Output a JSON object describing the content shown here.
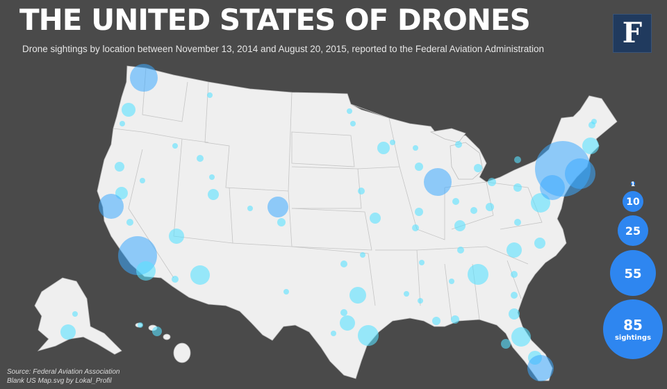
{
  "title": "THE UNITED STATES OF DRONES",
  "subtitle": "Drone sightings by location between November 13, 2014 and August 20, 2015, reported to the Federal Aviation Administration",
  "logo_letter": "F",
  "source_line1": "Source: Federal Aviation Association",
  "source_line2": "Blank US Map.svg by Lokal_Profil",
  "legend": {
    "items": [
      {
        "value": 1,
        "label": "1"
      },
      {
        "value": 10,
        "label": "10"
      },
      {
        "value": 25,
        "label": "25"
      },
      {
        "value": 55,
        "label": "55"
      },
      {
        "value": 85,
        "label": "85",
        "sublabel": "sightings"
      }
    ]
  },
  "colors": {
    "background": "#4a4a4a",
    "land": "#efefef",
    "sighting_bubble": "#5ae1ff",
    "legend_bubble": "#2e86f0"
  },
  "sightings_note": "bubble area proportional to number of sightings"
}
